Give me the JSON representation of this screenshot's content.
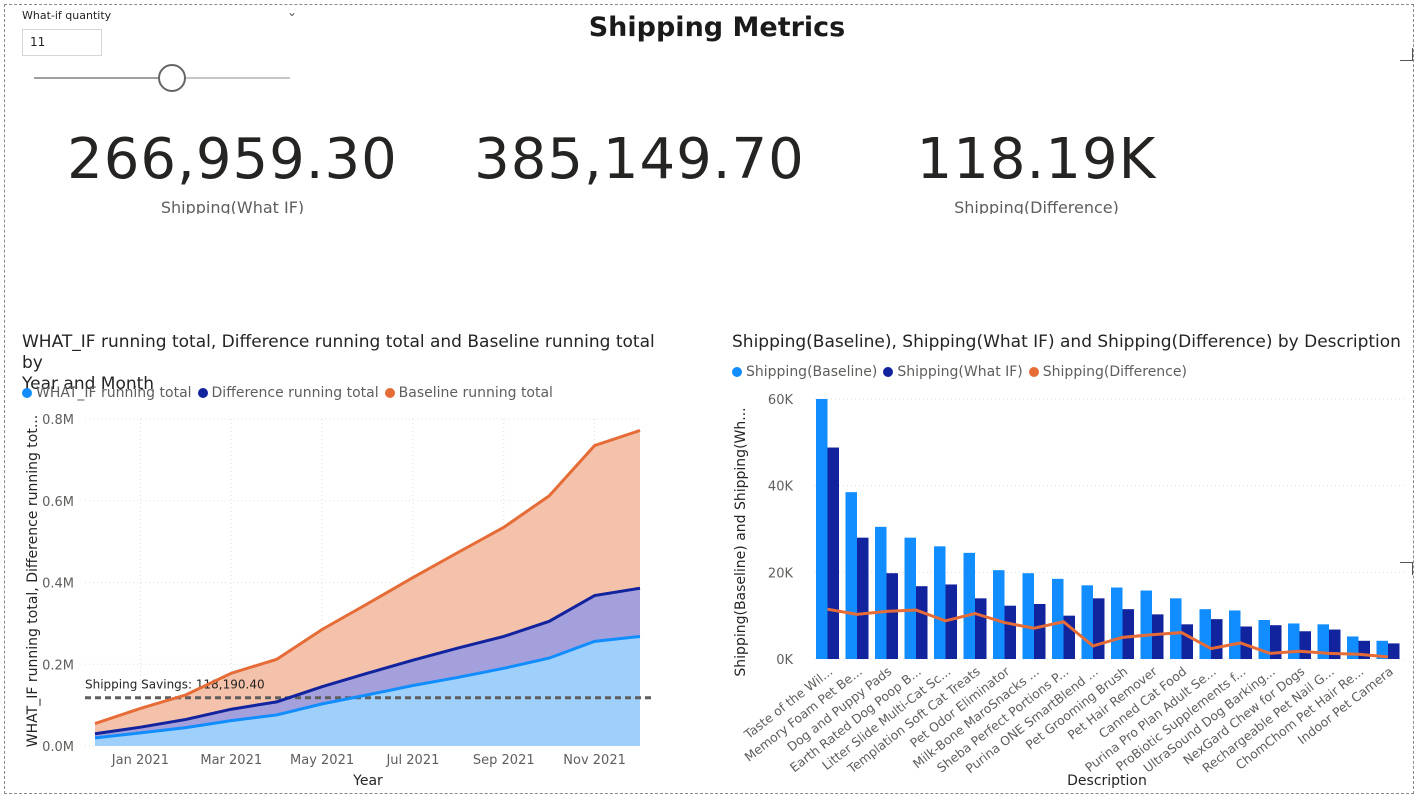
{
  "slicer": {
    "title": "What-if quantity",
    "value": "11",
    "chevron_icon": "chevron-down-icon",
    "slider_level": 0.54
  },
  "page_title": "Shipping Metrics",
  "cards": [
    {
      "value": "266,959.30",
      "label": "Shipping(What IF)"
    },
    {
      "value": "385,149.70",
      "label": ""
    },
    {
      "value": "118.19K",
      "label": "Shipping(Difference)"
    }
  ],
  "colors": {
    "light_blue": "#118dff",
    "dark_blue": "#12239e",
    "orange": "#e66c37",
    "area_orange": "#f4c2aa",
    "area_purple": "#a3a0dc",
    "area_blue": "#9ed0fb"
  },
  "line_chart": {
    "title_line1": "WHAT_IF running total, Difference running total and Baseline running total by",
    "title_line2": "Year and Month",
    "legend": [
      "WHAT_IF running total",
      "Difference running total",
      "Baseline running total"
    ],
    "ylabel": "WHAT_IF running total, Difference running tot...",
    "xlabel": "Year",
    "annotation": "Shipping Savings: 118,190.40",
    "chart_data": {
      "type": "area",
      "x": [
        "2020-12",
        "2021-01",
        "2021-02",
        "2021-03",
        "2021-04",
        "2021-05",
        "2021-06",
        "2021-07",
        "2021-08",
        "2021-09",
        "2021-10",
        "2021-11",
        "2021-12"
      ],
      "series": [
        {
          "name": "Baseline running total",
          "values": [
            55000,
            92000,
            125000,
            178000,
            212000,
            285000,
            348000,
            412000,
            474000,
            535000,
            612000,
            735000,
            772000
          ]
        },
        {
          "name": "Difference running total",
          "values": [
            30000,
            46000,
            65000,
            90000,
            108000,
            145000,
            178000,
            210000,
            240000,
            268000,
            305000,
            368000,
            386000
          ]
        },
        {
          "name": "WHAT_IF running total",
          "values": [
            20000,
            32000,
            45000,
            62000,
            76000,
            103000,
            125000,
            148000,
            168000,
            190000,
            215000,
            256000,
            268000
          ]
        }
      ],
      "reference_line": 118190.4,
      "ylim": [
        0,
        800000
      ],
      "yticks": [
        "0.0M",
        "0.2M",
        "0.4M",
        "0.6M",
        "0.8M"
      ],
      "xticks": [
        "Jan 2021",
        "Mar 2021",
        "May 2021",
        "Jul 2021",
        "Sep 2021",
        "Nov 2021"
      ],
      "grid": true
    }
  },
  "bar_chart": {
    "title": "Shipping(Baseline), Shipping(What IF) and Shipping(Difference) by Description",
    "legend": [
      "Shipping(Baseline)",
      "Shipping(What IF)",
      "Shipping(Difference)"
    ],
    "ylabel": "Shipping(Baseline) and Shipping(Wh...",
    "xlabel": "Description",
    "chart_data": {
      "type": "bar",
      "categories": [
        "Taste of the Wil...",
        "Memory Foam Pet Be...",
        "Dog and Puppy Pads",
        "Earth Rated Dog Poop B...",
        "Litter Slide Multi-Cat Sc...",
        "Templation Soft Cat Treats",
        "Pet Odor Eliminator",
        "Milk-Bone MaroSnacks ...",
        "Sheba Perfect Portions P...",
        "Purina ONE SmartBlend ...",
        "Pet Grooming Brush",
        "Pet Hair Remover",
        "Canned Cat Food",
        "Purina Pro Plan Adult Se...",
        "ProBiotic Supplements f...",
        "UltraSound Dog Barking...",
        "NexGard Chew for Dogs",
        "Rechargeable Pet Nail G...",
        "ChomChom Pet Hair Re...",
        "Indoor Pet Camera"
      ],
      "series": [
        {
          "name": "Shipping(Baseline)",
          "values": [
            60000,
            38500,
            30500,
            28000,
            26000,
            24500,
            20500,
            19800,
            18500,
            17000,
            16500,
            15800,
            14000,
            11500,
            11200,
            9000,
            8200,
            8000,
            5200,
            4200
          ]
        },
        {
          "name": "Shipping(What IF)",
          "values": [
            48800,
            28000,
            19800,
            16800,
            17200,
            14000,
            12300,
            12700,
            10000,
            14000,
            11500,
            10300,
            8000,
            9200,
            7500,
            7800,
            6400,
            6800,
            4200,
            3600
          ]
        },
        {
          "name": "Shipping(Difference)",
          "values": [
            11500,
            10300,
            11000,
            11300,
            8800,
            10500,
            8400,
            7100,
            8600,
            3000,
            5000,
            5600,
            6100,
            2400,
            3700,
            1300,
            1800,
            1300,
            1100,
            500
          ]
        }
      ],
      "ylim": [
        0,
        60000
      ],
      "yticks": [
        "0K",
        "20K",
        "40K",
        "60K"
      ],
      "grid": true
    }
  }
}
